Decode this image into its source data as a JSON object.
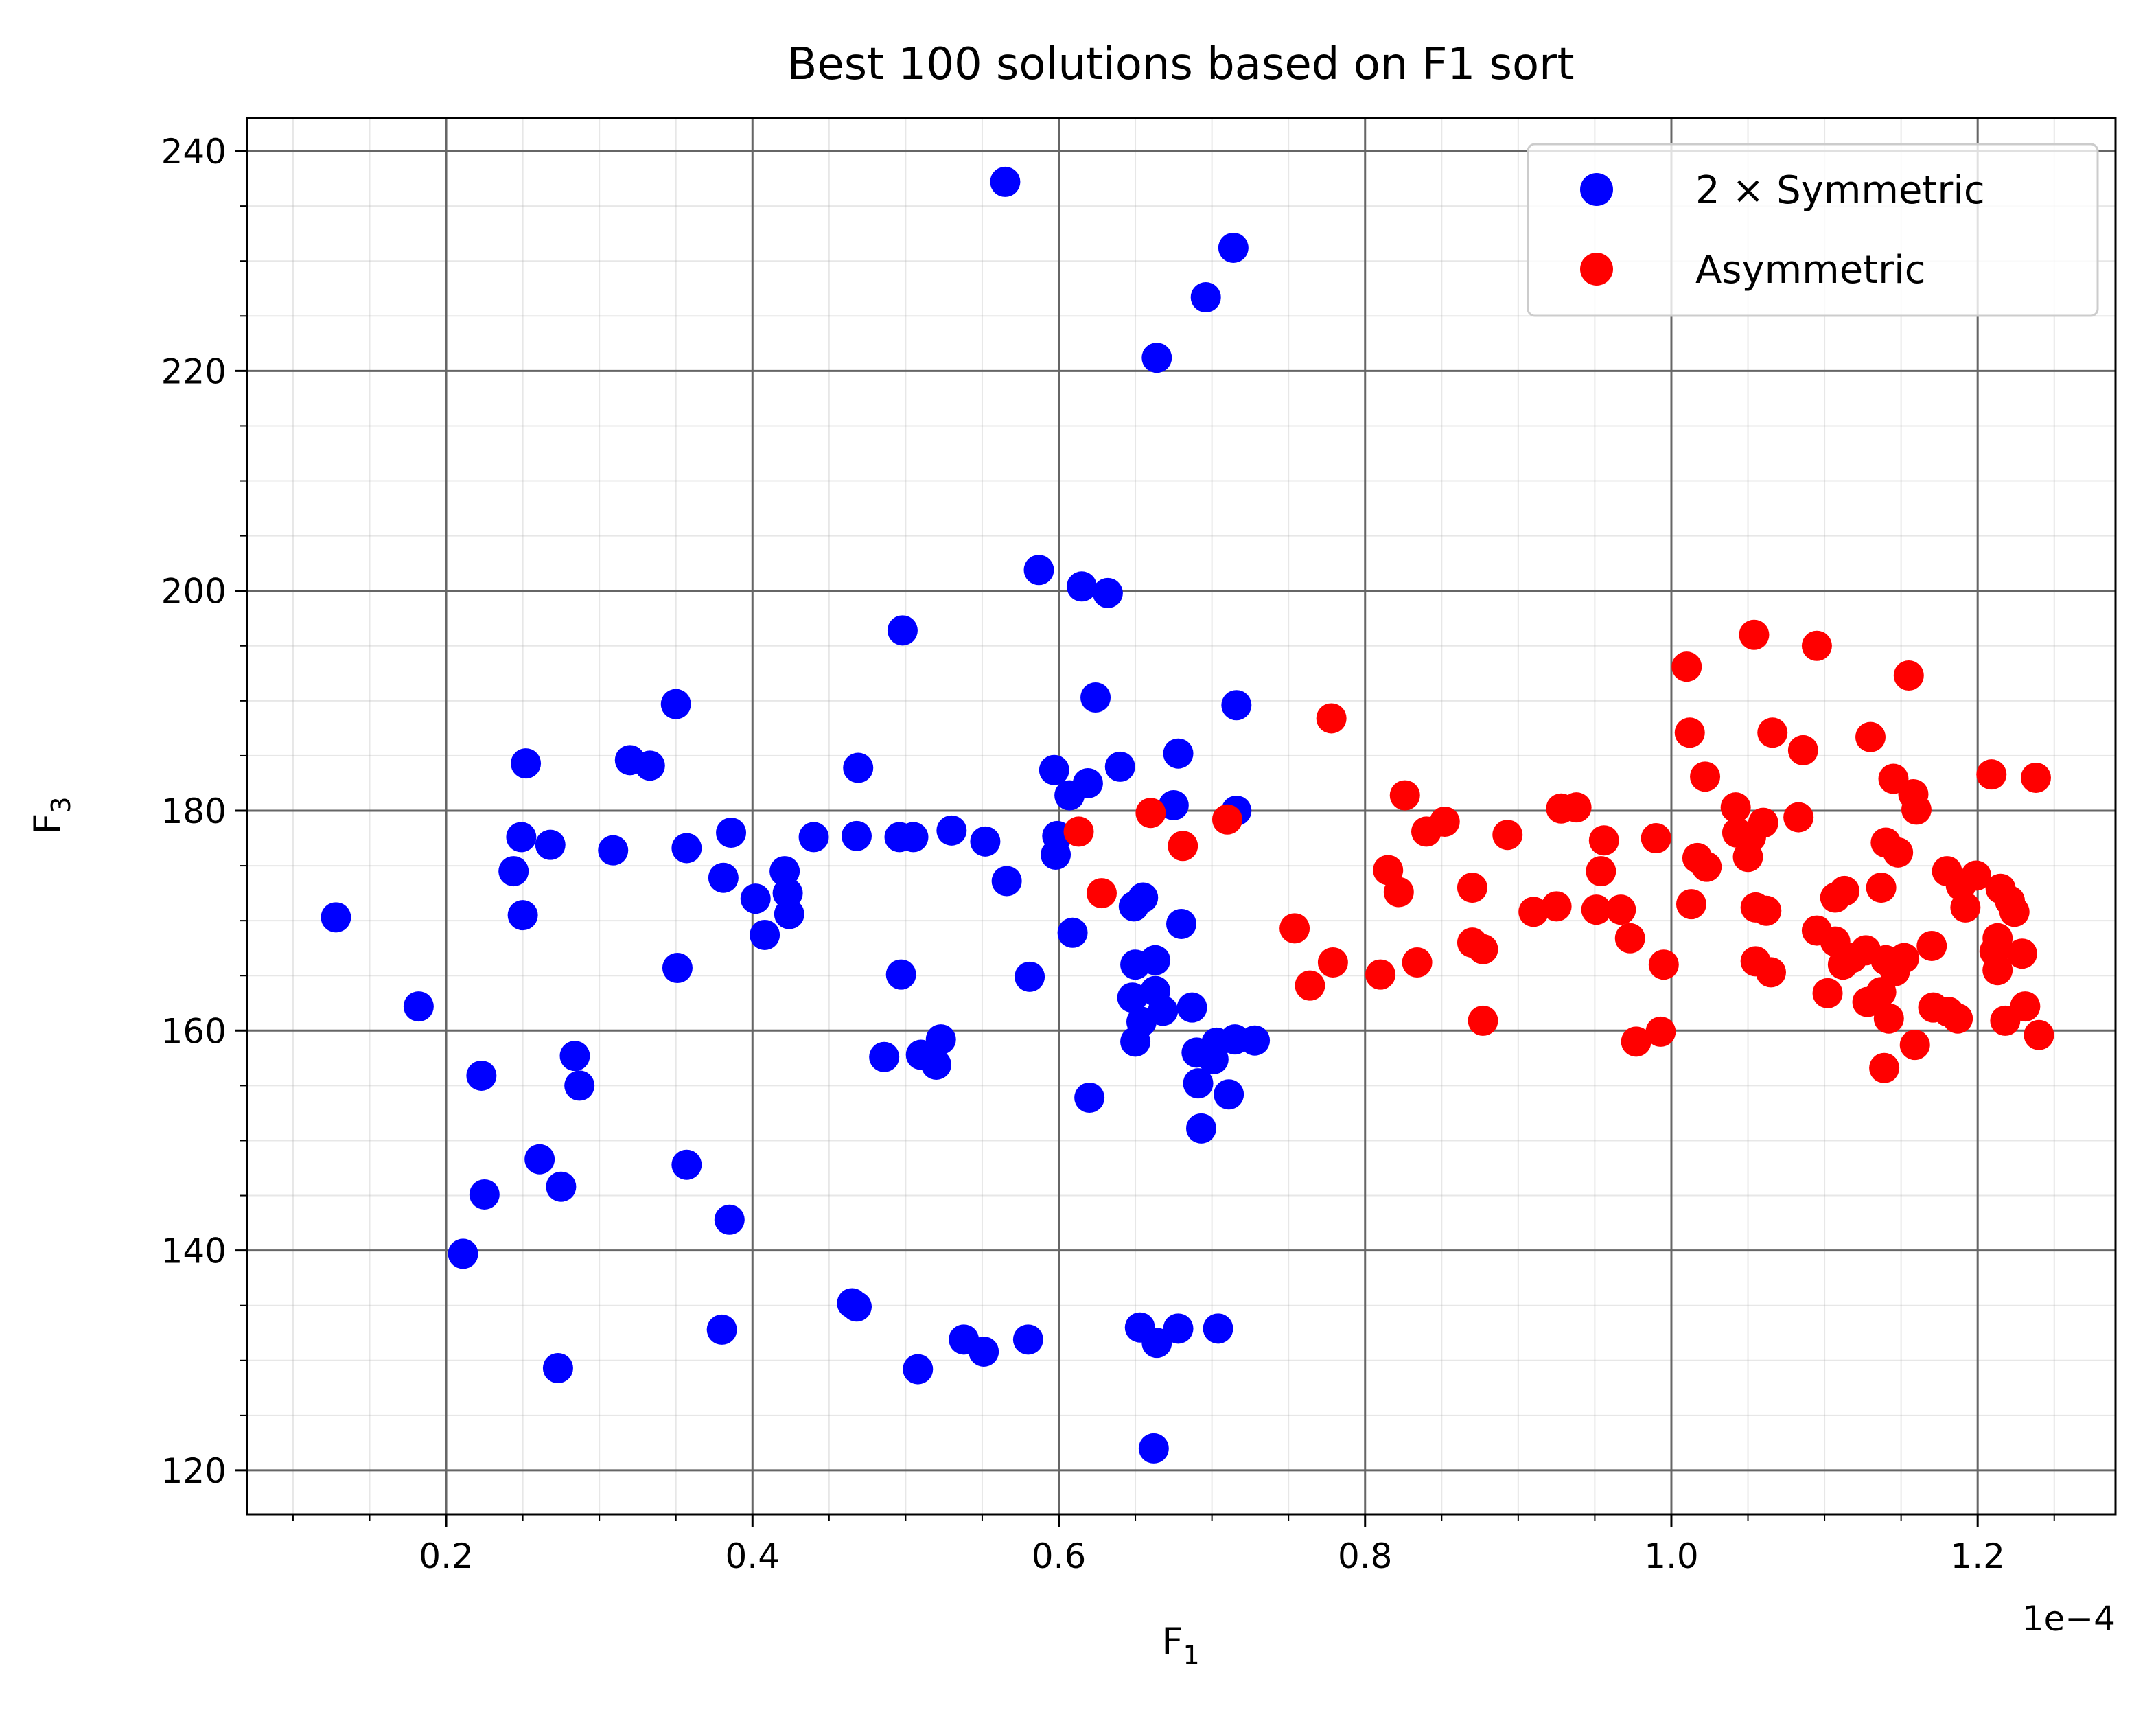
{
  "chart_data": {
    "type": "scatter",
    "title": "Best 100 solutions based on F1 sort",
    "xlabel": "F",
    "xlabel_sub": "1",
    "ylabel": "F",
    "ylabel_sub": "3",
    "x_offset_text": "1e−4",
    "xlim": [
      0.07,
      1.29
    ],
    "ylim": [
      116,
      243
    ],
    "x_ticks": [
      0.2,
      0.4,
      0.6,
      0.8,
      1.0,
      1.2
    ],
    "x_tick_labels": [
      "0.2",
      "0.4",
      "0.6",
      "0.8",
      "1.0",
      "1.2"
    ],
    "y_ticks": [
      120,
      140,
      160,
      180,
      200,
      220,
      240
    ],
    "y_tick_labels": [
      "120",
      "140",
      "160",
      "180",
      "200",
      "220",
      "240"
    ],
    "grid": true,
    "legend_position": "top-right",
    "series": [
      {
        "name": "2 × Symmetric",
        "color": "#0000ff",
        "points": [
          [
            0.565,
            237.2
          ],
          [
            0.714,
            231.2
          ],
          [
            0.696,
            226.7
          ],
          [
            0.664,
            221.2
          ],
          [
            0.587,
            201.9
          ],
          [
            0.615,
            200.4
          ],
          [
            0.632,
            199.8
          ],
          [
            0.498,
            196.4
          ],
          [
            0.624,
            190.3
          ],
          [
            0.35,
            189.7
          ],
          [
            0.716,
            189.6
          ],
          [
            0.678,
            185.2
          ],
          [
            0.32,
            184.6
          ],
          [
            0.333,
            184.1
          ],
          [
            0.252,
            184.3
          ],
          [
            0.469,
            183.9
          ],
          [
            0.597,
            183.7
          ],
          [
            0.64,
            184
          ],
          [
            0.619,
            182.5
          ],
          [
            0.607,
            181.4
          ],
          [
            0.675,
            180.5
          ],
          [
            0.716,
            180
          ],
          [
            0.386,
            178
          ],
          [
            0.53,
            178.2
          ],
          [
            0.249,
            177.6
          ],
          [
            0.268,
            176.9
          ],
          [
            0.44,
            177.6
          ],
          [
            0.468,
            177.7
          ],
          [
            0.496,
            177.6
          ],
          [
            0.505,
            177.6
          ],
          [
            0.552,
            177.2
          ],
          [
            0.599,
            177.7
          ],
          [
            0.309,
            176.4
          ],
          [
            0.357,
            176.6
          ],
          [
            0.244,
            174.5
          ],
          [
            0.381,
            173.9
          ],
          [
            0.421,
            174.5
          ],
          [
            0.566,
            173.6
          ],
          [
            0.598,
            176
          ],
          [
            0.402,
            172
          ],
          [
            0.423,
            172.5
          ],
          [
            0.424,
            170.6
          ],
          [
            0.25,
            170.5
          ],
          [
            0.128,
            170.3
          ],
          [
            0.408,
            168.7
          ],
          [
            0.609,
            168.9
          ],
          [
            0.649,
            171.3
          ],
          [
            0.655,
            172.1
          ],
          [
            0.68,
            169.7
          ],
          [
            0.351,
            165.7
          ],
          [
            0.497,
            165.1
          ],
          [
            0.581,
            164.9
          ],
          [
            0.65,
            166
          ],
          [
            0.663,
            166.4
          ],
          [
            0.648,
            163
          ],
          [
            0.663,
            163.6
          ],
          [
            0.668,
            161.8
          ],
          [
            0.654,
            160.8
          ],
          [
            0.65,
            159
          ],
          [
            0.687,
            162.1
          ],
          [
            0.182,
            162.2
          ],
          [
            0.486,
            157.6
          ],
          [
            0.51,
            157.8
          ],
          [
            0.52,
            156.9
          ],
          [
            0.523,
            159.2
          ],
          [
            0.69,
            158
          ],
          [
            0.703,
            158.9
          ],
          [
            0.715,
            159.2
          ],
          [
            0.728,
            159.1
          ],
          [
            0.701,
            157.4
          ],
          [
            0.691,
            155.2
          ],
          [
            0.711,
            154.2
          ],
          [
            0.62,
            153.9
          ],
          [
            0.223,
            155.9
          ],
          [
            0.284,
            157.7
          ],
          [
            0.287,
            155
          ],
          [
            0.693,
            151.1
          ],
          [
            0.261,
            148.3
          ],
          [
            0.357,
            147.8
          ],
          [
            0.275,
            145.8
          ],
          [
            0.225,
            145.1
          ],
          [
            0.385,
            142.8
          ],
          [
            0.211,
            139.7
          ],
          [
            0.465,
            135.2
          ],
          [
            0.468,
            134.9
          ],
          [
            0.38,
            132.8
          ],
          [
            0.653,
            133
          ],
          [
            0.678,
            132.9
          ],
          [
            0.704,
            132.9
          ],
          [
            0.664,
            131.6
          ],
          [
            0.538,
            131.9
          ],
          [
            0.551,
            130.8
          ],
          [
            0.58,
            131.9
          ],
          [
            0.273,
            129.3
          ],
          [
            0.508,
            129.2
          ],
          [
            0.662,
            122
          ]
        ]
      },
      {
        "name": "Asymmetric",
        "color": "#ff0000",
        "points": [
          [
            1.054,
            196
          ],
          [
            1.095,
            195
          ],
          [
            1.01,
            193.1
          ],
          [
            1.155,
            192.3
          ],
          [
            0.778,
            188.4
          ],
          [
            1.012,
            187.1
          ],
          [
            1.066,
            187.1
          ],
          [
            1.13,
            186.7
          ],
          [
            1.086,
            185.5
          ],
          [
            1.022,
            183.1
          ],
          [
            1.145,
            182.9
          ],
          [
            1.209,
            183.3
          ],
          [
            1.238,
            183
          ],
          [
            0.826,
            181.4
          ],
          [
            0.928,
            180.2
          ],
          [
            0.938,
            180.3
          ],
          [
            1.042,
            180.3
          ],
          [
            1.158,
            181.5
          ],
          [
            1.16,
            180.1
          ],
          [
            1.083,
            179.4
          ],
          [
            0.852,
            179
          ],
          [
            1.06,
            178.9
          ],
          [
            0.66,
            179.8
          ],
          [
            0.71,
            179.2
          ],
          [
            0.613,
            178.1
          ],
          [
            0.84,
            178.1
          ],
          [
            1.043,
            178
          ],
          [
            0.893,
            177.8
          ],
          [
            0.956,
            177.3
          ],
          [
            0.99,
            177.5
          ],
          [
            1.052,
            177.6
          ],
          [
            1.14,
            177.1
          ],
          [
            0.681,
            176.8
          ],
          [
            1.148,
            176.2
          ],
          [
            1.017,
            175.7
          ],
          [
            1.023,
            174.9
          ],
          [
            1.05,
            175.8
          ],
          [
            0.815,
            174.6
          ],
          [
            0.954,
            174.5
          ],
          [
            1.18,
            174.5
          ],
          [
            1.199,
            174.1
          ],
          [
            1.189,
            173.2
          ],
          [
            1.137,
            173
          ],
          [
            1.215,
            172.9
          ],
          [
            0.628,
            172.5
          ],
          [
            0.822,
            172.6
          ],
          [
            0.87,
            173
          ],
          [
            1.107,
            172.1
          ],
          [
            1.113,
            172.7
          ],
          [
            1.221,
            171.8
          ],
          [
            1.013,
            171.5
          ],
          [
            1.055,
            171.2
          ],
          [
            1.062,
            170.9
          ],
          [
            0.925,
            171.3
          ],
          [
            0.91,
            170.8
          ],
          [
            0.951,
            171
          ],
          [
            0.967,
            171
          ],
          [
            1.192,
            171.2
          ],
          [
            1.224,
            170.8
          ],
          [
            0.754,
            169.3
          ],
          [
            1.095,
            169.1
          ],
          [
            1.213,
            168.4
          ],
          [
            0.973,
            168.4
          ],
          [
            0.87,
            168
          ],
          [
            0.877,
            167.4
          ],
          [
            1.107,
            168.1
          ],
          [
            1.127,
            167.3
          ],
          [
            1.17,
            167.7
          ],
          [
            1.118,
            166.6
          ],
          [
            1.14,
            166.4
          ],
          [
            1.152,
            166.6
          ],
          [
            1.211,
            167.2
          ],
          [
            1.229,
            167
          ],
          [
            0.834,
            166.2
          ],
          [
            1.055,
            166.3
          ],
          [
            1.065,
            165.3
          ],
          [
            0.779,
            166.2
          ],
          [
            0.995,
            166
          ],
          [
            1.112,
            166
          ],
          [
            1.146,
            165.4
          ],
          [
            0.81,
            165.1
          ],
          [
            0.764,
            164.1
          ],
          [
            1.213,
            165.5
          ],
          [
            1.102,
            163.4
          ],
          [
            1.137,
            163.5
          ],
          [
            1.128,
            162.6
          ],
          [
            1.171,
            162.1
          ],
          [
            1.181,
            161.7
          ],
          [
            1.187,
            161.1
          ],
          [
            1.231,
            162.2
          ],
          [
            1.218,
            160.9
          ],
          [
            1.142,
            161.1
          ],
          [
            0.877,
            160.9
          ],
          [
            0.993,
            159.9
          ],
          [
            0.977,
            159
          ],
          [
            1.159,
            158.7
          ],
          [
            1.24,
            159.6
          ],
          [
            1.139,
            156.6
          ]
        ]
      }
    ]
  }
}
